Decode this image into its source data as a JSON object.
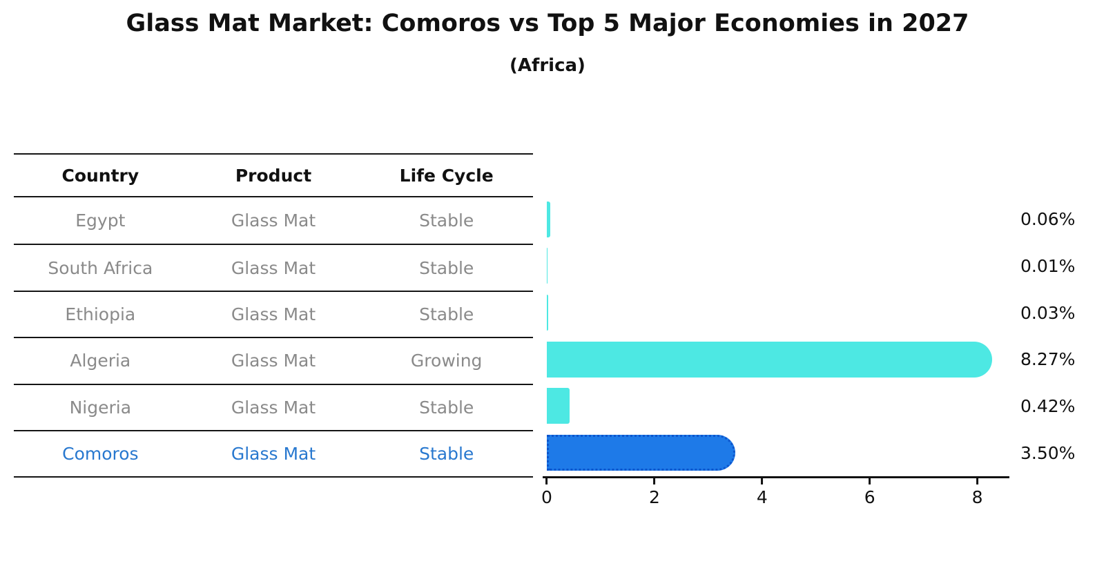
{
  "title": "Glass Mat Market: Comoros vs Top 5 Major Economies in 2027",
  "subtitle": "(Africa)",
  "table": {
    "headers": [
      "Country",
      "Product",
      "Life Cycle"
    ],
    "rows": [
      {
        "country": "Egypt",
        "product": "Glass Mat",
        "life_cycle": "Stable",
        "highlighted": false
      },
      {
        "country": "South Africa",
        "product": "Glass Mat",
        "life_cycle": "Stable",
        "highlighted": false
      },
      {
        "country": "Ethiopia",
        "product": "Glass Mat",
        "life_cycle": "Stable",
        "highlighted": false
      },
      {
        "country": "Algeria",
        "product": "Glass Mat",
        "life_cycle": "Growing",
        "highlighted": false
      },
      {
        "country": "Nigeria",
        "product": "Glass Mat",
        "life_cycle": "Stable",
        "highlighted": false
      },
      {
        "country": "Comoros",
        "product": "Glass Mat",
        "life_cycle": "Stable",
        "highlighted": true
      }
    ]
  },
  "chart_data": {
    "type": "bar",
    "orientation": "horizontal",
    "title": "Glass Mat Market: Comoros vs Top 5 Major Economies in 2027",
    "subtitle": "(Africa)",
    "categories": [
      "Egypt",
      "South Africa",
      "Ethiopia",
      "Algeria",
      "Nigeria",
      "Comoros"
    ],
    "values": [
      0.06,
      0.01,
      0.03,
      8.27,
      0.42,
      3.5
    ],
    "value_labels": [
      "0.06%",
      "0.01%",
      "0.03%",
      "8.27%",
      "0.42%",
      "3.50%"
    ],
    "x_ticks": [
      0,
      2,
      4,
      6,
      8
    ],
    "xlim": [
      0,
      8.57
    ],
    "xlabel": "",
    "ylabel": "",
    "grid": false,
    "legend": false,
    "bar_color": "#4de8e3",
    "highlight_bar_color": "#1e7ae8",
    "highlight_border_color": "#0d55cc",
    "highlight_text_color": "#2878cf",
    "highlight_index": 5
  },
  "colors": {
    "background": "#ffffff",
    "title_text": "#111111",
    "table_line": "#141414",
    "row_text": "#8a8a8a"
  }
}
